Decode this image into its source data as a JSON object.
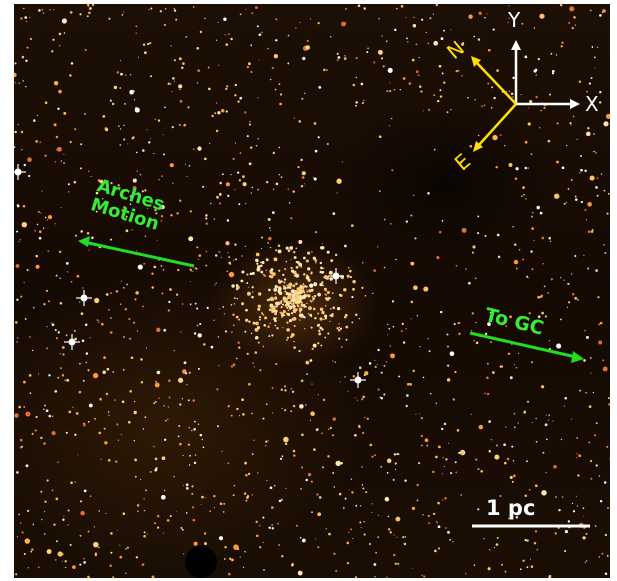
{
  "image": {
    "subject": "star-cluster-field",
    "colors": {
      "background": "#170b04",
      "motion_arrow": "#22dd22",
      "compass_xy": "#ffffff",
      "compass_ne": "#ffe000",
      "scale_bar": "#ffffff"
    }
  },
  "annotations": {
    "arches_line1": "Arches",
    "arches_line2": "Motion",
    "to_gc": "To GC",
    "scale": "1 pc"
  },
  "compass": {
    "y": "Y",
    "x": "X",
    "n": "N",
    "e": "E"
  }
}
